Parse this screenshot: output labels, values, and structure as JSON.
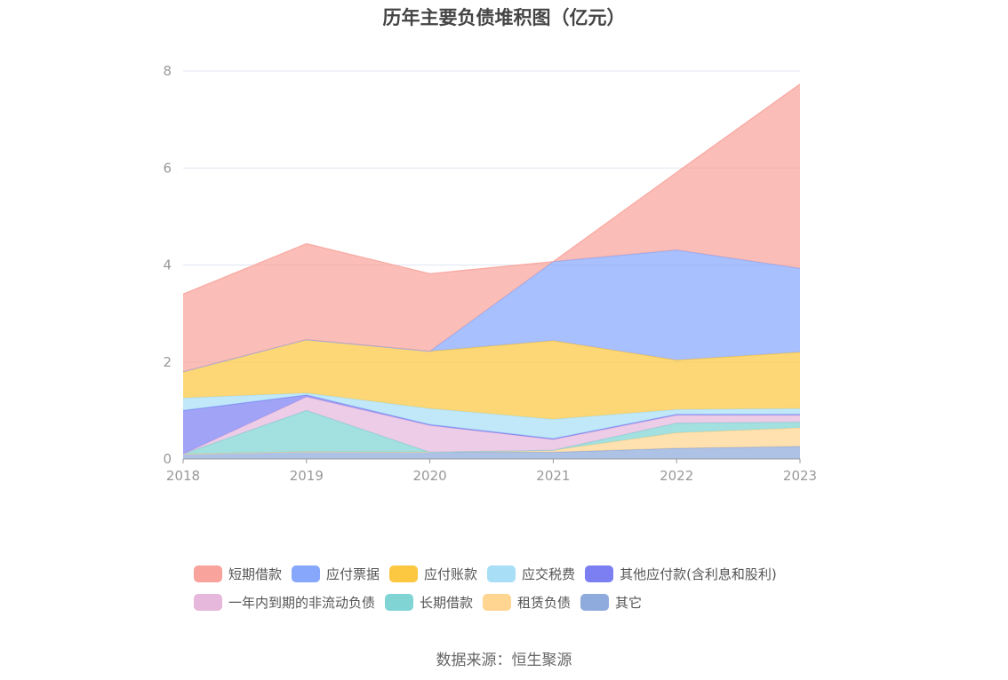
{
  "chart_data": {
    "type": "area",
    "title": "历年主要负债堆积图（亿元）",
    "categories": [
      "2018",
      "2019",
      "2020",
      "2021",
      "2022",
      "2023"
    ],
    "ylim": [
      0,
      8
    ],
    "yticks": [
      0,
      2,
      4,
      6,
      8
    ],
    "grid": true,
    "stacked": true,
    "legend_position": "bottom",
    "series": [
      {
        "name": "其它",
        "color": "#8faadc",
        "values": [
          0.1,
          0.15,
          0.14,
          0.14,
          0.22,
          0.26
        ]
      },
      {
        "name": "租赁负债",
        "color": "#ffd591",
        "values": [
          0.0,
          0.0,
          0.0,
          0.04,
          0.32,
          0.38
        ]
      },
      {
        "name": "长期借款",
        "color": "#80d4d4",
        "values": [
          0.0,
          0.85,
          0.0,
          0.0,
          0.2,
          0.12
        ]
      },
      {
        "name": "一年内到期的非流动负债",
        "color": "#e5b8dc",
        "values": [
          0.0,
          0.28,
          0.55,
          0.22,
          0.16,
          0.14
        ]
      },
      {
        "name": "其他应付款(含利息和股利)",
        "color": "#7b7ff2",
        "values": [
          0.9,
          0.04,
          0.02,
          0.02,
          0.02,
          0.02
        ]
      },
      {
        "name": "应交税费",
        "color": "#a8dff7",
        "values": [
          0.26,
          0.04,
          0.33,
          0.4,
          0.1,
          0.12
        ]
      },
      {
        "name": "应付账款",
        "color": "#fcc741",
        "values": [
          0.54,
          1.1,
          1.18,
          1.62,
          1.02,
          1.16
        ]
      },
      {
        "name": "应付票据",
        "color": "#87a7fc",
        "values": [
          0.0,
          0.0,
          0.0,
          1.63,
          2.27,
          1.73
        ]
      },
      {
        "name": "短期借款",
        "color": "#f8a39b",
        "values": [
          1.6,
          1.98,
          1.6,
          0.0,
          1.6,
          3.8
        ]
      }
    ],
    "legend_order": [
      "短期借款",
      "应付票据",
      "应付账款",
      "应交税费",
      "其他应付款(含利息和股利)",
      "一年内到期的非流动负债",
      "长期借款",
      "租赁负债",
      "其它"
    ]
  },
  "source_text": "数据来源：恒生聚源",
  "colors": {
    "grid": "#e0e6f1",
    "axis": "#999999",
    "tick_text": "#999999"
  }
}
